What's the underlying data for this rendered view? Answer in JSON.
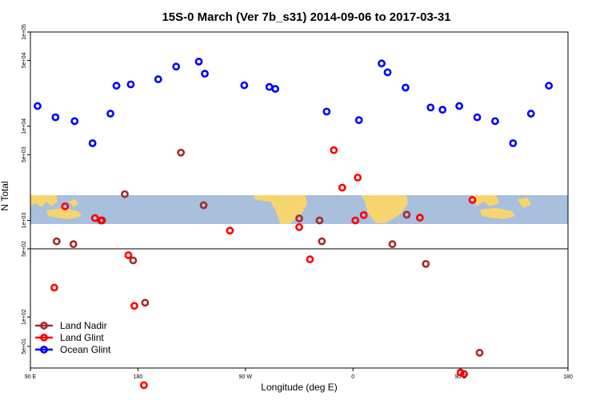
{
  "chart_data": {
    "type": "scatter",
    "title": "15S-0 March (Ver 7b_s31)   2014-09-06 to 2017-03-31",
    "xlabel": "Longitude (deg E)",
    "ylabel": "N Total",
    "x_ticks": [
      {
        "value": 90,
        "label": "90 E"
      },
      {
        "value": 180,
        "label": "180"
      },
      {
        "value": 270,
        "label": "90 W"
      },
      {
        "value": 360,
        "label": "0"
      },
      {
        "value": 450,
        "label": "90 E"
      },
      {
        "value": 540,
        "label": "180"
      }
    ],
    "xlim": [
      90,
      540
    ],
    "upper_panel": {
      "scale": "log",
      "ylim": [
        500,
        100000
      ],
      "y_ticks": [
        {
          "value": 100000,
          "label": "1e+05"
        },
        {
          "value": 50000,
          "label": "5e+04"
        },
        {
          "value": 10000,
          "label": "1e+04"
        },
        {
          "value": 5000,
          "label": "5e+03"
        },
        {
          "value": 1000,
          "label": "1e+03"
        },
        {
          "value": 500,
          "label": "5e+02"
        }
      ]
    },
    "lower_panel": {
      "scale": "log",
      "ylim": [
        30,
        500
      ],
      "y_ticks": [
        {
          "value": 500,
          "label": "5e+02"
        },
        {
          "value": 100,
          "label": "1e+02"
        },
        {
          "value": 50,
          "label": "5e+01"
        }
      ]
    },
    "legend_position": "bottom-left",
    "series": [
      {
        "name": "Land Nadir",
        "color": "#a52a2a",
        "points": [
          [
            112,
            600
          ],
          [
            126,
            560
          ],
          [
            149,
            1000
          ],
          [
            169,
            1900
          ],
          [
            176,
            380
          ],
          [
            186,
            140
          ],
          [
            216,
            5250
          ],
          [
            235,
            1450
          ],
          [
            332,
            1000
          ],
          [
            334,
            600
          ],
          [
            405,
            1150
          ],
          [
            315,
            1050
          ],
          [
            393,
            560
          ],
          [
            421,
            350
          ],
          [
            466,
            43
          ]
        ]
      },
      {
        "name": "Land Glint",
        "color": "#ff0000",
        "points": [
          [
            110,
            200
          ],
          [
            119,
            1410
          ],
          [
            144,
            1060
          ],
          [
            150,
            1000
          ],
          [
            172,
            430
          ],
          [
            177,
            130
          ],
          [
            185,
            20
          ],
          [
            257,
            780
          ],
          [
            315,
            850
          ],
          [
            324,
            390
          ],
          [
            344,
            5570
          ],
          [
            351,
            2230
          ],
          [
            362,
            1000
          ],
          [
            364,
            2850
          ],
          [
            369,
            1140
          ],
          [
            416,
            1070
          ],
          [
            450,
            27
          ],
          [
            453,
            26
          ],
          [
            460,
            1650
          ]
        ]
      },
      {
        "name": "Ocean Glint",
        "color": "#0000ff",
        "points": [
          [
            96,
            16380
          ],
          [
            111,
            12430
          ],
          [
            127,
            11320
          ],
          [
            142,
            6600
          ],
          [
            157,
            13600
          ],
          [
            162,
            26900
          ],
          [
            174,
            27800
          ],
          [
            197,
            31500
          ],
          [
            212,
            42900
          ],
          [
            231,
            48500
          ],
          [
            236,
            36100
          ],
          [
            269,
            27200
          ],
          [
            290,
            26100
          ],
          [
            295,
            24900
          ],
          [
            338,
            14300
          ],
          [
            365,
            11600
          ],
          [
            384,
            46350
          ],
          [
            389,
            37300
          ],
          [
            404,
            25700
          ],
          [
            425,
            15800
          ],
          [
            435,
            14950
          ],
          [
            449,
            16380
          ],
          [
            464,
            12430
          ],
          [
            479,
            11320
          ],
          [
            494,
            6600
          ],
          [
            509,
            13600
          ],
          [
            524,
            26900
          ]
        ]
      }
    ]
  }
}
